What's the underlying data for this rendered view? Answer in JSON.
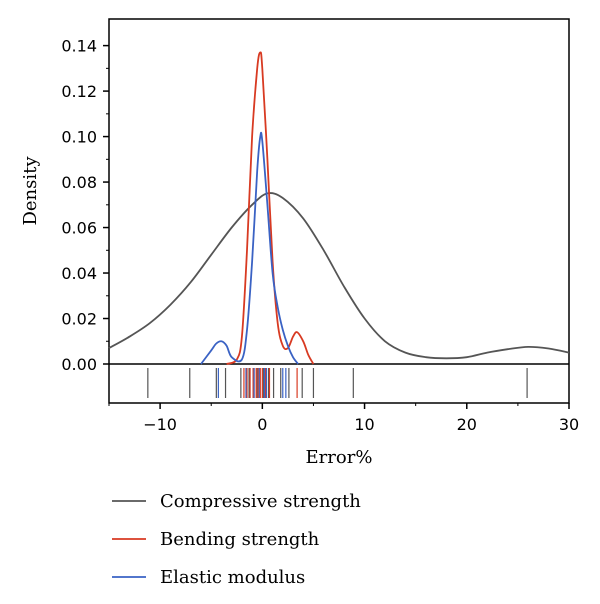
{
  "chart_data": {
    "type": "line",
    "subtype": "kernel-density-with-rug",
    "xlabel": "Error%",
    "ylabel": "Density",
    "xlim": [
      -15,
      30
    ],
    "ylim": [
      0,
      0.15
    ],
    "x_ticks": [
      -10,
      0,
      10,
      20,
      30
    ],
    "x_tick_labels": [
      "−10",
      "0",
      "10",
      "20",
      "30"
    ],
    "y_ticks": [
      0.0,
      0.02,
      0.04,
      0.06,
      0.08,
      0.1,
      0.12,
      0.14
    ],
    "y_tick_labels": [
      "0.00",
      "0.02",
      "0.04",
      "0.06",
      "0.08",
      "0.10",
      "0.12",
      "0.14"
    ],
    "grid": false,
    "legend_position": "bottom",
    "series": [
      {
        "name": "Compressive strength",
        "color": "#555555",
        "x": [
          -15,
          -13,
          -11,
          -9,
          -7,
          -5,
          -3,
          -1,
          0.5,
          2,
          4,
          6,
          8,
          10,
          12,
          14,
          16,
          18,
          20,
          22,
          24,
          26,
          28,
          30
        ],
        "y": [
          0.007,
          0.012,
          0.018,
          0.026,
          0.036,
          0.048,
          0.06,
          0.07,
          0.075,
          0.073,
          0.064,
          0.05,
          0.034,
          0.02,
          0.01,
          0.005,
          0.003,
          0.0025,
          0.003,
          0.005,
          0.0065,
          0.0075,
          0.0068,
          0.005
        ]
      },
      {
        "name": "Bending strength",
        "color": "#d83a22",
        "x": [
          -3.5,
          -2.5,
          -2,
          -1.5,
          -1,
          -0.5,
          -0.2,
          0,
          0.5,
          1,
          1.5,
          2,
          2.5,
          3,
          3.4,
          4,
          4.5,
          5
        ],
        "y": [
          0,
          0.002,
          0.012,
          0.05,
          0.1,
          0.13,
          0.137,
          0.13,
          0.09,
          0.045,
          0.018,
          0.008,
          0.007,
          0.012,
          0.014,
          0.01,
          0.004,
          0
        ]
      },
      {
        "name": "Elastic modulus",
        "color": "#3a62c4",
        "x": [
          -6,
          -5,
          -4.5,
          -4,
          -3.5,
          -3,
          -2,
          -1.5,
          -1,
          -0.5,
          -0.2,
          0,
          0.5,
          1,
          1.5,
          2,
          2.5,
          3,
          3.5
        ],
        "y": [
          0,
          0.006,
          0.009,
          0.01,
          0.008,
          0.003,
          0.002,
          0.015,
          0.045,
          0.085,
          0.1,
          0.098,
          0.07,
          0.04,
          0.025,
          0.015,
          0.008,
          0.003,
          0
        ]
      }
    ],
    "rug": [
      {
        "series": "Compressive strength",
        "color": "#555555",
        "x": [
          -11.2,
          -7.1,
          -4.5,
          -3.6,
          -2.1,
          -1.3,
          -0.9,
          -0.5,
          0.1,
          0.6,
          1.1,
          1.8,
          2.6,
          3.9,
          5.0,
          8.9,
          25.9
        ]
      },
      {
        "series": "Bending strength",
        "color": "#d83a22",
        "x": [
          -1.8,
          -1.5,
          -1.2,
          -0.9,
          -0.6,
          -0.4,
          -0.2,
          0.0,
          0.3,
          0.7,
          3.4
        ]
      },
      {
        "series": "Elastic modulus",
        "color": "#3a62c4",
        "x": [
          -4.3,
          -1.6,
          -0.8,
          -0.3,
          0.2,
          0.4,
          2.0,
          2.3
        ]
      }
    ]
  }
}
